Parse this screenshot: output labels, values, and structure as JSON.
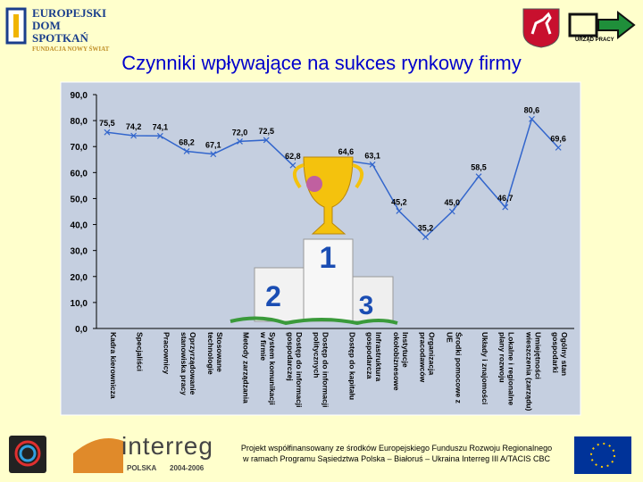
{
  "header": {
    "logo_left_lines": [
      "EUROPEJSKI",
      "DOM SPOTKAŃ",
      "FUNDACJA NOWY ŚWIAT"
    ],
    "logo_right_label": "URZĄD PRACY"
  },
  "chart_data": {
    "type": "line",
    "title": "Czynniki wpływające na sukces rynkowy firmy",
    "categories": [
      "Kadra kierownicza",
      "Specjaliści",
      "Pracownicy",
      "Oprzyrządowanie stanowiska pracy",
      "Stosowane technologie",
      "Metody zarządzania",
      "System komunikacji w firmie",
      "Dostęp do informacji gospodarczej",
      "Dostęp do informacji politycznych",
      "Dostęp do kapitału",
      "Infrastruktura gospodarcza",
      "Instytucje okołobiznesowe",
      "Organizacja pracodawców",
      "Środki pomocowe z UE",
      "Układy i znajomości",
      "Lokalne i regionalne plany rozwoju",
      "Umiejętności wieszczenia (zarządu)",
      "Ogólny stan gospodarki"
    ],
    "series": [
      {
        "color": "#3366cc",
        "values": [
          75.5,
          74.2,
          74.1,
          68.2,
          67.1,
          72.0,
          72.5,
          62.8,
          null,
          64.6,
          63.1,
          45.2,
          35.2,
          45.0,
          58.5,
          46.7,
          80.6,
          69.6
        ],
        "value_labels": [
          "75,5",
          "74,2",
          "74,1",
          "68,2",
          "67,1",
          "72,0",
          "72,5",
          "62,8",
          null,
          "64,6",
          "63,1",
          "45,2",
          "35,2",
          "45,0",
          "58,5",
          "46,7",
          "80,6",
          "69,6"
        ]
      }
    ],
    "ylim": [
      0,
      90
    ],
    "yticks": [
      {
        "value": 0,
        "label": "0,0"
      },
      {
        "value": 10,
        "label": "10,0"
      },
      {
        "value": 20,
        "label": "20,0"
      },
      {
        "value": 30,
        "label": "30,0"
      },
      {
        "value": 40,
        "label": "40,0"
      },
      {
        "value": 50,
        "label": "50,0"
      },
      {
        "value": 60,
        "label": "60,0"
      },
      {
        "value": 70,
        "label": "70,0"
      },
      {
        "value": 80,
        "label": "80,0"
      },
      {
        "value": 90,
        "label": "90,0"
      }
    ]
  },
  "footer": {
    "interreg": "interreg",
    "interreg_country": "POLSKA",
    "interreg_years": "2004-2006",
    "note": "Projekt współfinansowany ze środków Europejskiego Funduszu Rozwoju Regionalnego w ramach Programu Sąsiedztwa Polska – Białoruś – Ukraina Interreg III A/TACIS CBC"
  }
}
